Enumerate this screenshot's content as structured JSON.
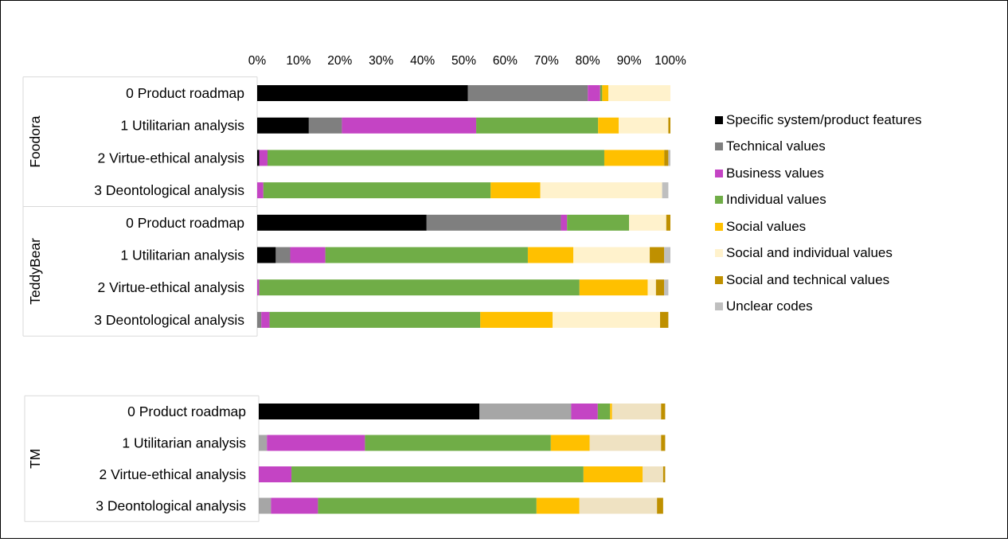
{
  "chart_data": [
    {
      "type": "bar",
      "orientation": "horizontal",
      "stacked": "percent",
      "xaxis": {
        "range": [
          0,
          100
        ],
        "position": "top",
        "tick_labels": [
          "0%",
          "10%",
          "20%",
          "30%",
          "40%",
          "50%",
          "60%",
          "70%",
          "80%",
          "90%",
          "100%"
        ]
      },
      "grid": false,
      "groups": [
        {
          "name": "Foodora",
          "categories": [
            "0 Product roadmap",
            "1 Utilitarian analysis",
            "2 Virtue-ethical analysis",
            "3 Deontological analysis"
          ]
        },
        {
          "name": "TeddyBear",
          "categories": [
            "0 Product roadmap",
            "1 Utilitarian analysis",
            "2 Virtue-ethical analysis",
            "3 Deontological analysis"
          ]
        }
      ],
      "series": [
        {
          "name": "Specific system/product features",
          "color": "#000000",
          "values": [
            51,
            12.5,
            0.5,
            0,
            41,
            4.5,
            0,
            0
          ]
        },
        {
          "name": "Technical values",
          "color": "#7f7f7f",
          "values": [
            29,
            8,
            0,
            0,
            32.5,
            3.5,
            0,
            1
          ]
        },
        {
          "name": "Business values",
          "color": "#c444c4",
          "values": [
            3,
            32.5,
            2,
            1.5,
            1.5,
            8.5,
            0.5,
            2
          ]
        },
        {
          "name": "Individual values",
          "color": "#70ad47",
          "values": [
            0.5,
            29.5,
            81.5,
            55,
            15,
            49,
            77.5,
            51
          ]
        },
        {
          "name": "Social values",
          "color": "#ffc000",
          "values": [
            1.5,
            5,
            14.5,
            12,
            0,
            11,
            16.5,
            17.5
          ]
        },
        {
          "name": "Social and individual values",
          "color": "#fff2cc",
          "values": [
            15,
            12,
            0,
            29.5,
            9,
            18.5,
            2,
            26
          ]
        },
        {
          "name": "Social and technical values",
          "color": "#bf9000",
          "values": [
            0,
            0.5,
            1,
            0,
            1,
            3.5,
            2,
            2
          ]
        },
        {
          "name": "Unclear codes",
          "color": "#bfbfbf",
          "values": [
            0,
            0,
            0.5,
            1.5,
            0,
            1.5,
            1,
            0
          ]
        }
      ],
      "legend": {
        "position": "right"
      }
    },
    {
      "type": "bar",
      "orientation": "horizontal",
      "stacked": "percent",
      "xaxis": {
        "range": [
          0,
          100
        ]
      },
      "grid": false,
      "groups": [
        {
          "name": "TM",
          "categories": [
            "0 Product roadmap",
            "1 Utilitarian analysis",
            "2 Virtue-ethical analysis",
            "3 Deontological analysis"
          ]
        }
      ],
      "series": [
        {
          "color": "#000000",
          "values": [
            54,
            0,
            0,
            0
          ]
        },
        {
          "color": "#a6a6a6",
          "values": [
            22.5,
            2,
            0,
            3
          ]
        },
        {
          "color": "#c444c4",
          "values": [
            6.5,
            24,
            8,
            11.5
          ]
        },
        {
          "color": "#70ad47",
          "values": [
            3,
            45.5,
            71.5,
            53.5
          ]
        },
        {
          "color": "#ffc000",
          "values": [
            0.5,
            9.5,
            14.5,
            10.5
          ]
        },
        {
          "color": "#efe2c2",
          "values": [
            12,
            17.5,
            5,
            19
          ]
        },
        {
          "color": "#bf9000",
          "values": [
            1,
            1,
            0.5,
            1.5
          ]
        },
        {
          "color": "#bfbfbf",
          "values": [
            0,
            0,
            0,
            0
          ]
        }
      ]
    }
  ]
}
